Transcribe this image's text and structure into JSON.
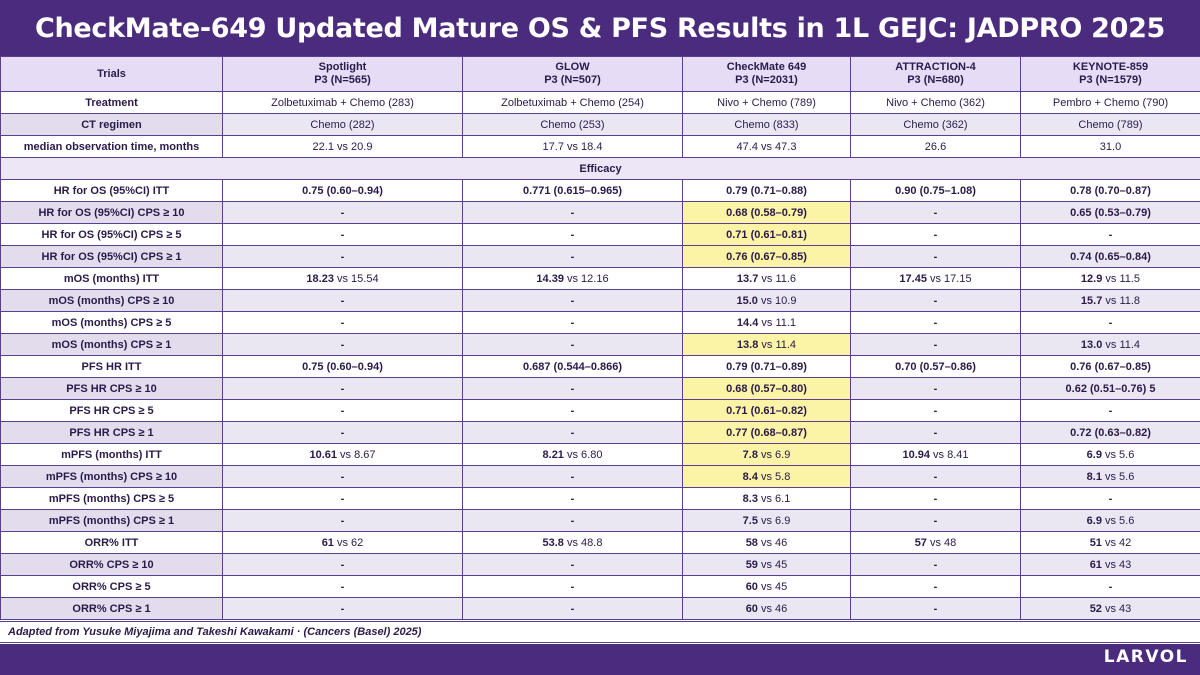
{
  "title": "CheckMate-649 Updated Mature OS & PFS Results in 1L GEJC: JADPRO 2025",
  "header": {
    "row_label": "Trials",
    "trials": [
      {
        "name": "Spotlight",
        "sub": "P3 (N=565)"
      },
      {
        "name": "GLOW",
        "sub": "P3 (N=507)"
      },
      {
        "name": "CheckMate 649",
        "sub": "P3 (N=2031)"
      },
      {
        "name": "ATTRACTION-4",
        "sub": "P3 (N=680)"
      },
      {
        "name": "KEYNOTE-859",
        "sub": "P3 (N=1579)"
      }
    ]
  },
  "info_rows": [
    {
      "label": "Treatment",
      "cells": [
        "Zolbetuximab + Chemo (283)",
        "Zolbetuximab + Chemo (254)",
        "Nivo + Chemo (789)",
        "Nivo + Chemo (362)",
        "Pembro + Chemo (790)"
      ]
    },
    {
      "label": "CT regimen",
      "cells": [
        "Chemo (282)",
        "Chemo (253)",
        "Chemo (833)",
        "Chemo (362)",
        "Chemo (789)"
      ]
    },
    {
      "label": "median observation time, months",
      "cells": [
        "22.1 vs 20.9",
        "17.7 vs 18.4",
        "47.4 vs 47.3",
        "26.6",
        "31.0"
      ]
    }
  ],
  "section_label": "Efficacy",
  "efficacy_rows": [
    {
      "label": "HR for OS (95%CI) ITT",
      "cells": [
        {
          "b": "0.75 (0.60–0.94)",
          "r": ""
        },
        {
          "b": "0.771 (0.615–0.965)",
          "r": ""
        },
        {
          "b": "0.79 (0.71–0.88)",
          "r": ""
        },
        {
          "b": "0.90 (0.75–1.08)",
          "r": ""
        },
        {
          "b": "0.78 (0.70–0.87)",
          "r": ""
        }
      ]
    },
    {
      "label": "HR for OS (95%CI) CPS ≥ 10",
      "cells": [
        {
          "b": "-",
          "r": ""
        },
        {
          "b": "-",
          "r": ""
        },
        {
          "b": "0.68 (0.58–0.79)",
          "r": "",
          "hl": true
        },
        {
          "b": "-",
          "r": ""
        },
        {
          "b": "0.65 (0.53–0.79)",
          "r": ""
        }
      ]
    },
    {
      "label": "HR for OS (95%CI) CPS ≥ 5",
      "cells": [
        {
          "b": "-",
          "r": ""
        },
        {
          "b": "-",
          "r": ""
        },
        {
          "b": "0.71 (0.61–0.81)",
          "r": "",
          "hl": true
        },
        {
          "b": "-",
          "r": ""
        },
        {
          "b": "-",
          "r": ""
        }
      ]
    },
    {
      "label": "HR for OS (95%CI) CPS ≥ 1",
      "cells": [
        {
          "b": "-",
          "r": ""
        },
        {
          "b": "-",
          "r": ""
        },
        {
          "b": "0.76 (0.67–0.85)",
          "r": "",
          "hl": true
        },
        {
          "b": "-",
          "r": ""
        },
        {
          "b": "0.74 (0.65–0.84)",
          "r": ""
        }
      ]
    },
    {
      "label": "mOS (months) ITT",
      "cells": [
        {
          "b": "18.23",
          "r": " vs 15.54"
        },
        {
          "b": "14.39",
          "r": " vs 12.16"
        },
        {
          "b": "13.7",
          "r": " vs 11.6"
        },
        {
          "b": "17.45",
          "r": " vs 17.15"
        },
        {
          "b": "12.9",
          "r": " vs 11.5"
        }
      ]
    },
    {
      "label": "mOS (months) CPS ≥ 10",
      "cells": [
        {
          "b": "-",
          "r": ""
        },
        {
          "b": "-",
          "r": ""
        },
        {
          "b": "15.0",
          "r": " vs 10.9"
        },
        {
          "b": "-",
          "r": ""
        },
        {
          "b": "15.7",
          "r": " vs 11.8"
        }
      ]
    },
    {
      "label": "mOS (months) CPS ≥ 5",
      "cells": [
        {
          "b": "-",
          "r": ""
        },
        {
          "b": "-",
          "r": ""
        },
        {
          "b": "14.4",
          "r": " vs 11.1"
        },
        {
          "b": "-",
          "r": ""
        },
        {
          "b": "-",
          "r": ""
        }
      ]
    },
    {
      "label": "mOS (months) CPS ≥ 1",
      "cells": [
        {
          "b": "-",
          "r": ""
        },
        {
          "b": "-",
          "r": ""
        },
        {
          "b": "13.8",
          "r": " vs 11.4",
          "hl": true
        },
        {
          "b": "-",
          "r": ""
        },
        {
          "b": "13.0",
          "r": " vs 11.4"
        }
      ]
    },
    {
      "label": "PFS HR ITT",
      "cells": [
        {
          "b": "0.75 (0.60–0.94)",
          "r": ""
        },
        {
          "b": "0.687 (0.544–0.866)",
          "r": ""
        },
        {
          "b": "0.79 (0.71–0.89)",
          "r": ""
        },
        {
          "b": "0.70 (0.57–0.86)",
          "r": ""
        },
        {
          "b": "0.76 (0.67–0.85)",
          "r": ""
        }
      ]
    },
    {
      "label": "PFS HR CPS ≥ 10",
      "cells": [
        {
          "b": "-",
          "r": ""
        },
        {
          "b": "-",
          "r": ""
        },
        {
          "b": "0.68 (0.57–0.80)",
          "r": "",
          "hl": true
        },
        {
          "b": "-",
          "r": ""
        },
        {
          "b": "0.62 (0.51–0.76) 5",
          "r": ""
        }
      ]
    },
    {
      "label": "PFS HR CPS ≥ 5",
      "cells": [
        {
          "b": "-",
          "r": ""
        },
        {
          "b": "-",
          "r": ""
        },
        {
          "b": "0.71 (0.61–0.82)",
          "r": "",
          "hl": true
        },
        {
          "b": "-",
          "r": ""
        },
        {
          "b": "-",
          "r": ""
        }
      ]
    },
    {
      "label": "PFS HR CPS ≥ 1",
      "cells": [
        {
          "b": "-",
          "r": ""
        },
        {
          "b": "-",
          "r": ""
        },
        {
          "b": "0.77 (0.68–0.87)",
          "r": "",
          "hl": true
        },
        {
          "b": "-",
          "r": ""
        },
        {
          "b": "0.72 (0.63–0.82)",
          "r": ""
        }
      ]
    },
    {
      "label": "mPFS (months) ITT",
      "cells": [
        {
          "b": "10.61",
          "r": " vs 8.67"
        },
        {
          "b": "8.21",
          "r": " vs 6.80"
        },
        {
          "b": "7.8",
          "r": " vs 6.9",
          "hl": true
        },
        {
          "b": "10.94",
          "r": " vs 8.41"
        },
        {
          "b": "6.9",
          "r": " vs 5.6"
        }
      ]
    },
    {
      "label": "mPFS (months) CPS ≥ 10",
      "cells": [
        {
          "b": "-",
          "r": ""
        },
        {
          "b": "-",
          "r": ""
        },
        {
          "b": "8.4",
          "r": " vs 5.8",
          "hl": true
        },
        {
          "b": "-",
          "r": ""
        },
        {
          "b": "8.1",
          "r": " vs 5.6"
        }
      ]
    },
    {
      "label": "mPFS (months) CPS ≥ 5",
      "cells": [
        {
          "b": "-",
          "r": ""
        },
        {
          "b": "-",
          "r": ""
        },
        {
          "b": "8.3",
          "r": " vs 6.1"
        },
        {
          "b": "-",
          "r": ""
        },
        {
          "b": "-",
          "r": ""
        }
      ]
    },
    {
      "label": "mPFS (months) CPS ≥ 1",
      "cells": [
        {
          "b": "-",
          "r": ""
        },
        {
          "b": "-",
          "r": ""
        },
        {
          "b": "7.5",
          "r": " vs 6.9"
        },
        {
          "b": "-",
          "r": ""
        },
        {
          "b": "6.9",
          "r": " vs 5.6"
        }
      ]
    },
    {
      "label": "ORR% ITT",
      "cells": [
        {
          "b": "61",
          "r": " vs 62"
        },
        {
          "b": "53.8",
          "r": " vs 48.8"
        },
        {
          "b": "58",
          "r": " vs 46"
        },
        {
          "b": "57",
          "r": " vs 48"
        },
        {
          "b": "51",
          "r": " vs 42"
        }
      ]
    },
    {
      "label": "ORR% CPS ≥ 10",
      "cells": [
        {
          "b": "-",
          "r": ""
        },
        {
          "b": "-",
          "r": ""
        },
        {
          "b": "59",
          "r": " vs 45"
        },
        {
          "b": "-",
          "r": ""
        },
        {
          "b": "61",
          "r": " vs 43"
        }
      ]
    },
    {
      "label": "ORR% CPS ≥ 5",
      "cells": [
        {
          "b": "-",
          "r": ""
        },
        {
          "b": "-",
          "r": ""
        },
        {
          "b": "60",
          "r": " vs 45"
        },
        {
          "b": "-",
          "r": ""
        },
        {
          "b": "-",
          "r": ""
        }
      ]
    },
    {
      "label": "ORR% CPS ≥ 1",
      "cells": [
        {
          "b": "-",
          "r": ""
        },
        {
          "b": "-",
          "r": ""
        },
        {
          "b": "60",
          "r": " vs 46"
        },
        {
          "b": "-",
          "r": ""
        },
        {
          "b": "52",
          "r": " vs 43"
        }
      ]
    }
  ],
  "source": "Adapted from Yusuke Miyajima and Takeshi Kawakami · (Cancers (Basel) 2025)",
  "brand": "LARVOL",
  "colors": {
    "banner": "#4a2b7e",
    "highlight": "#fbf3a6",
    "header_bg": "#e6dcf5"
  }
}
